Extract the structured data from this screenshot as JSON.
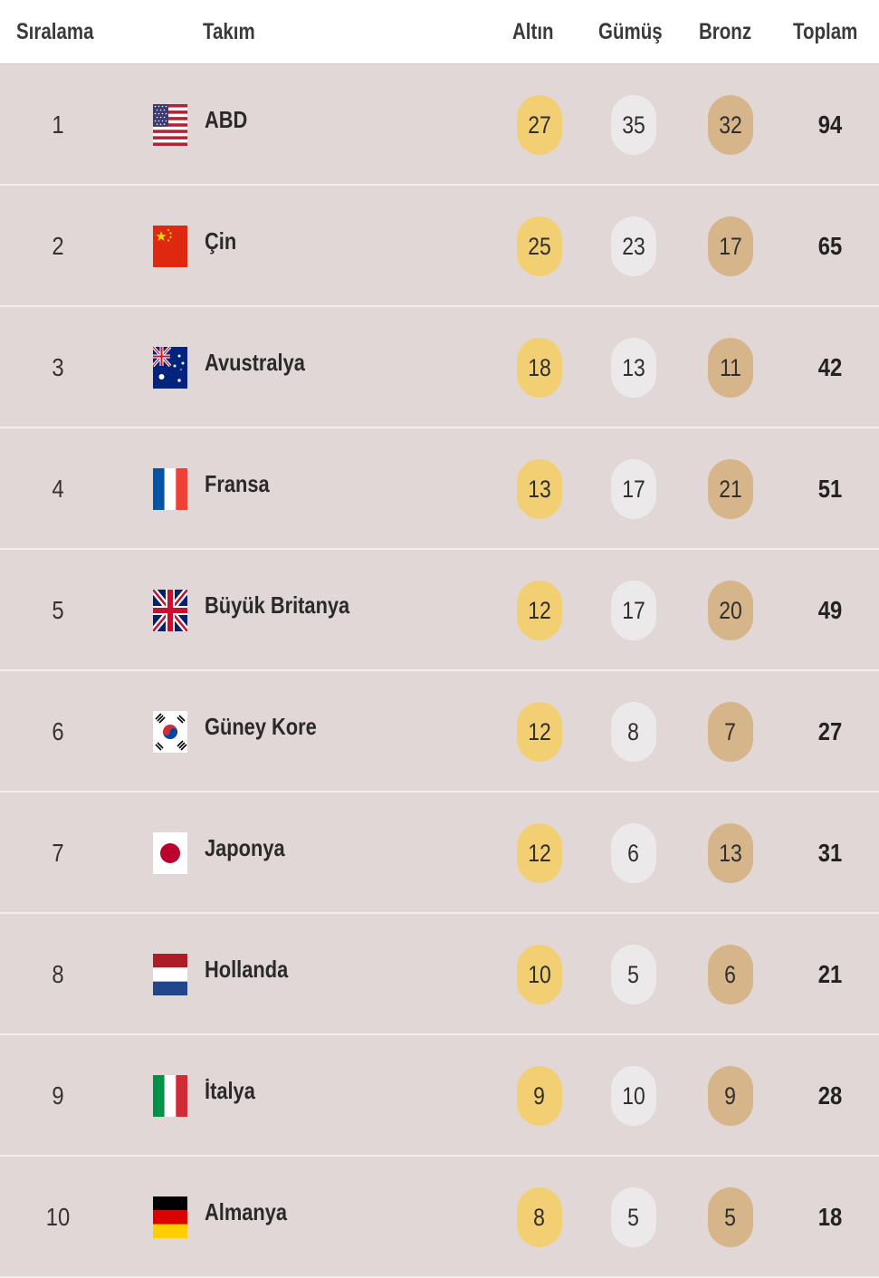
{
  "header": {
    "rank": "Sıralama",
    "team": "Takım",
    "gold": "Altın",
    "silver": "Gümüş",
    "bronze": "Bronz",
    "total": "Toplam"
  },
  "colors": {
    "row_bg": "#e2d7d7",
    "gold": "#f3cf74",
    "silver": "#ece9ea",
    "bronze": "#d7b58a"
  },
  "rows": [
    {
      "rank": "1",
      "team": "ABD",
      "flag": "usa-flag-icon",
      "gold": "27",
      "silver": "35",
      "bronze": "32",
      "total": "94"
    },
    {
      "rank": "2",
      "team": "Çin",
      "flag": "china-flag-icon",
      "gold": "25",
      "silver": "23",
      "bronze": "17",
      "total": "65"
    },
    {
      "rank": "3",
      "team": "Avustralya",
      "flag": "australia-flag-icon",
      "gold": "18",
      "silver": "13",
      "bronze": "11",
      "total": "42"
    },
    {
      "rank": "4",
      "team": "Fransa",
      "flag": "france-flag-icon",
      "gold": "13",
      "silver": "17",
      "bronze": "21",
      "total": "51"
    },
    {
      "rank": "5",
      "team": "Büyük Britanya",
      "flag": "uk-flag-icon",
      "gold": "12",
      "silver": "17",
      "bronze": "20",
      "total": "49"
    },
    {
      "rank": "6",
      "team": "Güney Kore",
      "flag": "south-korea-flag-icon",
      "gold": "12",
      "silver": "8",
      "bronze": "7",
      "total": "27"
    },
    {
      "rank": "7",
      "team": "Japonya",
      "flag": "japan-flag-icon",
      "gold": "12",
      "silver": "6",
      "bronze": "13",
      "total": "31"
    },
    {
      "rank": "8",
      "team": "Hollanda",
      "flag": "netherlands-flag-icon",
      "gold": "10",
      "silver": "5",
      "bronze": "6",
      "total": "21"
    },
    {
      "rank": "9",
      "team": "İtalya",
      "flag": "italy-flag-icon",
      "gold": "9",
      "silver": "10",
      "bronze": "9",
      "total": "28"
    },
    {
      "rank": "10",
      "team": "Almanya",
      "flag": "germany-flag-icon",
      "gold": "8",
      "silver": "5",
      "bronze": "5",
      "total": "18"
    }
  ]
}
